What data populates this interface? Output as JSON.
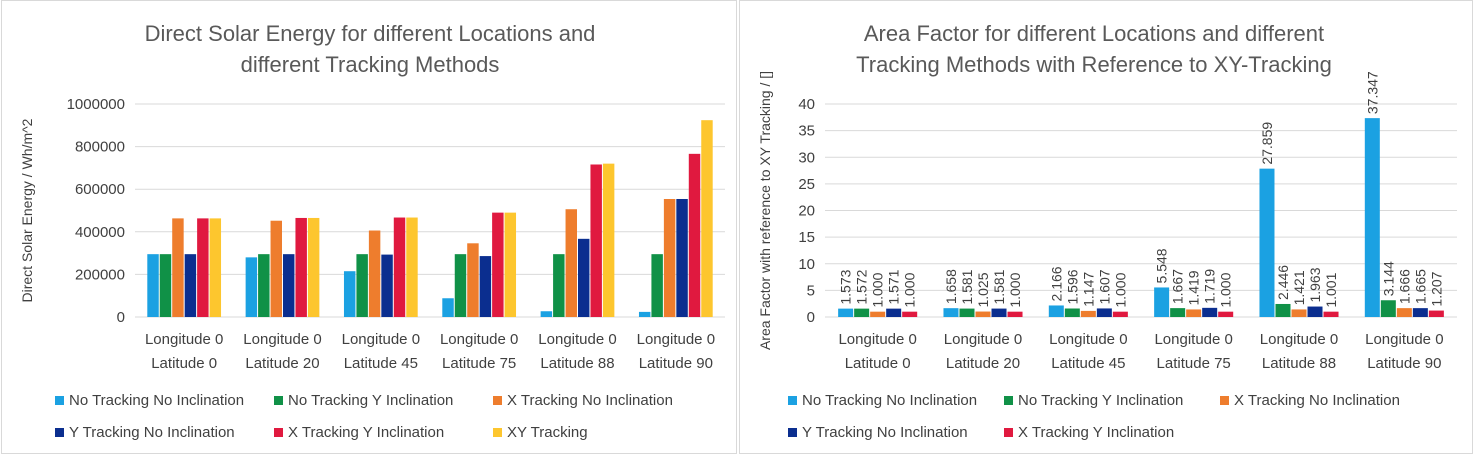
{
  "colors": {
    "no_tracking_no_inclination": "#1ba1e2",
    "no_tracking_y_inclination": "#109147",
    "x_tracking_no_inclination": "#ee7d2d",
    "y_tracking_no_inclination": "#0b2e8f",
    "x_tracking_y_inclination": "#e0193f",
    "xy_tracking": "#fdc62e",
    "gridline": "#d9d9d9",
    "text": "#404040",
    "title": "#595959"
  },
  "chart_data": [
    {
      "type": "bar",
      "title_lines": [
        "Direct Solar Energy for different Locations and",
        "different Tracking Methods"
      ],
      "xlabel": "",
      "ylabel": "Direct Solar Energy / Wh/m^2",
      "ylim": [
        0,
        1000000
      ],
      "yticks": [
        "0",
        "200000",
        "400000",
        "600000",
        "800000",
        "1000000"
      ],
      "grid": true,
      "legend_position": "bottom",
      "categories": [
        [
          "Longitude 0",
          "Latitude 0"
        ],
        [
          "Longitude 0",
          "Latitude 20"
        ],
        [
          "Longitude 0",
          "Latitude 45"
        ],
        [
          "Longitude 0",
          "Latitude 75"
        ],
        [
          "Longitude 0",
          "Latitude 88"
        ],
        [
          "Longitude 0",
          "Latitude 90"
        ]
      ],
      "series": [
        {
          "name": "No Tracking No Inclination",
          "color_key": "no_tracking_no_inclination",
          "values": [
            295000,
            280000,
            215000,
            88000,
            27000,
            24000
          ]
        },
        {
          "name": "No Tracking Y Inclination",
          "color_key": "no_tracking_y_inclination",
          "values": [
            295000,
            295000,
            295000,
            295000,
            295000,
            295000
          ]
        },
        {
          "name": "X Tracking No Inclination",
          "color_key": "x_tracking_no_inclination",
          "values": [
            463000,
            452000,
            406000,
            346000,
            506000,
            554000
          ]
        },
        {
          "name": "Y Tracking No Inclination",
          "color_key": "y_tracking_no_inclination",
          "values": [
            295000,
            295000,
            293000,
            286000,
            367000,
            554000
          ]
        },
        {
          "name": "X Tracking Y Inclination",
          "color_key": "x_tracking_y_inclination",
          "values": [
            463000,
            465000,
            467000,
            490000,
            716000,
            766000
          ]
        },
        {
          "name": "XY Tracking",
          "color_key": "xy_tracking",
          "values": [
            463000,
            465000,
            467000,
            490000,
            720000,
            924000
          ]
        }
      ]
    },
    {
      "type": "bar",
      "title_lines": [
        "Area Factor for different Locations and different",
        "Tracking Methods with Reference to XY-Tracking"
      ],
      "xlabel": "",
      "ylabel": "Area Factor with reference to XY Tracking / []",
      "ylim": [
        0,
        40
      ],
      "yticks": [
        "0",
        "5",
        "10",
        "15",
        "20",
        "25",
        "30",
        "35",
        "40"
      ],
      "grid": true,
      "legend_position": "bottom",
      "categories": [
        [
          "Longitude 0",
          "Latitude 0"
        ],
        [
          "Longitude 0",
          "Latitude 20"
        ],
        [
          "Longitude 0",
          "Latitude 45"
        ],
        [
          "Longitude 0",
          "Latitude 75"
        ],
        [
          "Longitude 0",
          "Latitude 88"
        ],
        [
          "Longitude 0",
          "Latitude 90"
        ]
      ],
      "series": [
        {
          "name": "No Tracking No Inclination",
          "color_key": "no_tracking_no_inclination",
          "values": [
            1.573,
            1.658,
            2.166,
            5.548,
            27.859,
            37.347
          ],
          "labels": [
            "1.573",
            "1.658",
            "2.166",
            "5.548",
            "27.859",
            "37.347"
          ]
        },
        {
          "name": "No Tracking Y Inclination",
          "color_key": "no_tracking_y_inclination",
          "values": [
            1.572,
            1.581,
            1.596,
            1.667,
            2.446,
            3.144
          ],
          "labels": [
            "1.572",
            "1.581",
            "1.596",
            "1.667",
            "2.446",
            "3.144"
          ]
        },
        {
          "name": "X Tracking No Inclination",
          "color_key": "x_tracking_no_inclination",
          "values": [
            1.0,
            1.025,
            1.147,
            1.419,
            1.421,
            1.666
          ],
          "labels": [
            "1.000",
            "1.025",
            "1.147",
            "1.419",
            "1.421",
            "1.666"
          ]
        },
        {
          "name": "Y Tracking No Inclination",
          "color_key": "y_tracking_no_inclination",
          "values": [
            1.571,
            1.581,
            1.607,
            1.719,
            1.963,
            1.665
          ],
          "labels": [
            "1.571",
            "1.581",
            "1.607",
            "1.719",
            "1.963",
            "1.665"
          ]
        },
        {
          "name": "X Tracking Y Inclination",
          "color_key": "x_tracking_y_inclination",
          "values": [
            1.0,
            1.0,
            1.0,
            1.0,
            1.001,
            1.207
          ],
          "labels": [
            "1.000",
            "1.000",
            "1.000",
            "1.000",
            "1.001",
            "1.207"
          ]
        }
      ]
    }
  ]
}
